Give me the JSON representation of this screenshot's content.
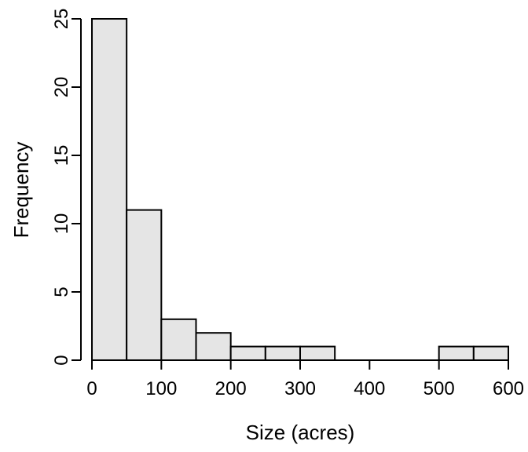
{
  "chart_data": {
    "type": "bar",
    "title": "",
    "xlabel": "Size (acres)",
    "ylabel": "Frequency",
    "bin_edges": [
      0,
      50,
      100,
      150,
      200,
      250,
      300,
      350,
      400,
      450,
      500,
      550,
      600
    ],
    "values": [
      25,
      11,
      3,
      2,
      1,
      1,
      1,
      0,
      0,
      0,
      1,
      1
    ],
    "xlim": [
      0,
      600
    ],
    "ylim": [
      0,
      25
    ],
    "xticks": [
      0,
      100,
      200,
      300,
      400,
      500,
      600
    ],
    "yticks": [
      0,
      5,
      10,
      15,
      20,
      25
    ],
    "bar_fill": "#e5e5e5",
    "bar_stroke": "#000000",
    "grid": false,
    "legend": "none"
  }
}
